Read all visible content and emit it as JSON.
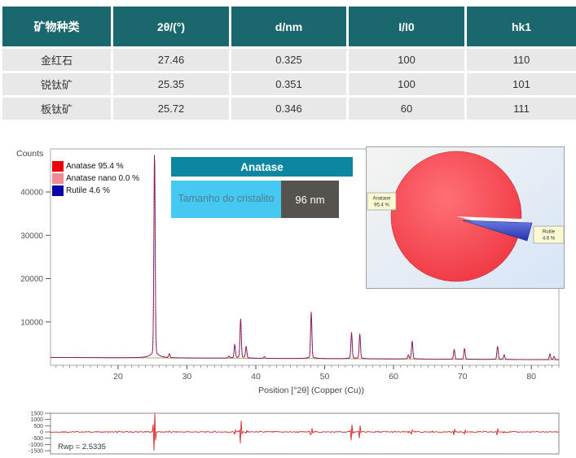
{
  "theme": {
    "table_header_bg": "#1a686d",
    "table_row_bg": "#e9e8e8",
    "annotation_title_bg": "#0d87a1",
    "annotation_label_bg": "#45c9f2",
    "annotation_value_bg": "#56524e",
    "observed_color": "#e8000b",
    "calculated_color": "#3d2e9e",
    "background_line_color": "#b0a86a",
    "residual_color": "#d41111",
    "pie_anatase_color": "#ee3340",
    "pie_rutile_color": "#3848c4"
  },
  "table": {
    "headers": [
      "矿物种类",
      "2θ/(°)",
      "d/nm",
      "I/I0",
      "hk1"
    ],
    "rows": [
      [
        "金红石",
        "27.46",
        "0.325",
        "100",
        "110"
      ],
      [
        "锐钛矿",
        "25.35",
        "0.351",
        "100",
        "101"
      ],
      [
        "板钛矿",
        "25.72",
        "0.346",
        "60",
        "111"
      ]
    ]
  },
  "xrd": {
    "y_axis_label": "Counts",
    "x_axis_label": "Position [°2θ] (Copper (Cu))",
    "legend": [
      {
        "label": "Anatase 95.4 %",
        "color": "#e8000b"
      },
      {
        "label": "Anatase nano 0.0 %",
        "color": "#f18a93"
      },
      {
        "label": "Rutile 4.6 %",
        "color": "#0b00a5"
      }
    ],
    "annotation": {
      "title": "Anatase",
      "size_label": "Tamanho do cristalito",
      "size_value": "96 nm"
    }
  },
  "residual": {
    "rwp_label": "Rwp = 2.5335"
  },
  "chart_data": [
    {
      "type": "line",
      "title": "XRD Rietveld refinement pattern (observed, calculated and background)",
      "xlabel": "Position [°2θ] (Copper (Cu))",
      "ylabel": "Counts",
      "xlim": [
        10.2,
        84
      ],
      "ylim": [
        0,
        50000
      ],
      "x_ticks": [
        20,
        30,
        40,
        50,
        60,
        70,
        80
      ],
      "y_ticks": [
        10000,
        20000,
        30000,
        40000
      ],
      "grid": false,
      "legend_position": "top-left",
      "background": {
        "intercept_counts": 1800,
        "slope_counts_per_deg": -7
      },
      "phases": [
        {
          "name": "Anatase",
          "weight_pct": 95.4
        },
        {
          "name": "Anatase nano",
          "weight_pct": 0.0
        },
        {
          "name": "Rutile",
          "weight_pct": 4.6
        }
      ],
      "crystallite_size_nm": 96,
      "peaks": [
        {
          "two_theta": 25.3,
          "intensity": 48000
        },
        {
          "two_theta": 27.45,
          "intensity": 900
        },
        {
          "two_theta": 36.1,
          "intensity": 450
        },
        {
          "two_theta": 36.95,
          "intensity": 3100
        },
        {
          "two_theta": 37.8,
          "intensity": 9200
        },
        {
          "two_theta": 38.6,
          "intensity": 2700
        },
        {
          "two_theta": 41.25,
          "intensity": 400
        },
        {
          "two_theta": 48.05,
          "intensity": 10800
        },
        {
          "two_theta": 53.9,
          "intensity": 6100
        },
        {
          "two_theta": 55.1,
          "intensity": 5800
        },
        {
          "two_theta": 62.15,
          "intensity": 900
        },
        {
          "two_theta": 62.7,
          "intensity": 4200
        },
        {
          "two_theta": 68.8,
          "intensity": 2300
        },
        {
          "two_theta": 70.3,
          "intensity": 2500
        },
        {
          "two_theta": 75.1,
          "intensity": 3100
        },
        {
          "two_theta": 76.05,
          "intensity": 1100
        },
        {
          "two_theta": 82.7,
          "intensity": 1300
        },
        {
          "two_theta": 83.3,
          "intensity": 700
        }
      ]
    },
    {
      "type": "pie",
      "title": "Phase composition",
      "slices": [
        {
          "label": "Anatase",
          "value_text": "95.4 %",
          "value": 95.4,
          "color": "#ee3340"
        },
        {
          "label": "Rutile",
          "value_text": "4.6 %",
          "value": 4.6,
          "color": "#3848c4",
          "exploded": true
        }
      ]
    },
    {
      "type": "line",
      "title": "Rietveld residual (difference) plot",
      "rwp": 2.5335,
      "ylim": [
        -1500,
        1500
      ],
      "y_ticks": [
        1500,
        1000,
        500,
        0,
        -500,
        -1000,
        -1500
      ],
      "xlim": [
        10.2,
        84
      ],
      "spike_at_two_theta": 25.3
    }
  ]
}
